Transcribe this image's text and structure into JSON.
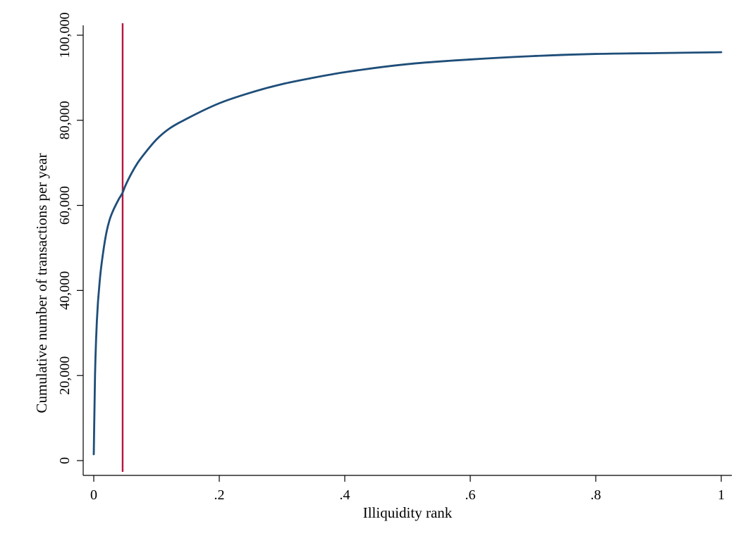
{
  "chart_data": {
    "type": "line",
    "title": "",
    "xlabel": "Illiquidity rank",
    "ylabel": "Cumulative number of transactions per year",
    "xlim": [
      0,
      1
    ],
    "ylim": [
      0,
      100000
    ],
    "grid": false,
    "x_ticks": [
      {
        "value": 0,
        "label": "0"
      },
      {
        "value": 0.2,
        "label": ".2"
      },
      {
        "value": 0.4,
        "label": ".4"
      },
      {
        "value": 0.6,
        "label": ".6"
      },
      {
        "value": 0.8,
        "label": ".8"
      },
      {
        "value": 1,
        "label": "1"
      }
    ],
    "y_ticks": [
      {
        "value": 0,
        "label": "0"
      },
      {
        "value": 20000,
        "label": "20,000"
      },
      {
        "value": 40000,
        "label": "40,000"
      },
      {
        "value": 60000,
        "label": "60,000"
      },
      {
        "value": 80000,
        "label": "80,000"
      },
      {
        "value": 100000,
        "label": "100,000"
      }
    ],
    "series": [
      {
        "color": "#1f4e79",
        "x": [
          0,
          0.002,
          0.005,
          0.01,
          0.015,
          0.02,
          0.025,
          0.03,
          0.04,
          0.046,
          0.05,
          0.06,
          0.07,
          0.08,
          0.1,
          0.12,
          0.15,
          0.2,
          0.25,
          0.3,
          0.35,
          0.4,
          0.5,
          0.6,
          0.7,
          0.8,
          0.9,
          1.0
        ],
        "y": [
          1500,
          20000,
          33000,
          43000,
          49000,
          53500,
          56500,
          58500,
          61500,
          63000,
          64500,
          67500,
          70000,
          72000,
          75500,
          78000,
          80500,
          84000,
          86500,
          88500,
          90000,
          91300,
          93200,
          94300,
          95100,
          95600,
          95800,
          96000
        ]
      }
    ],
    "reference_lines": [
      {
        "orientation": "vertical",
        "x": 0.046,
        "color": "#b5163f"
      }
    ]
  }
}
